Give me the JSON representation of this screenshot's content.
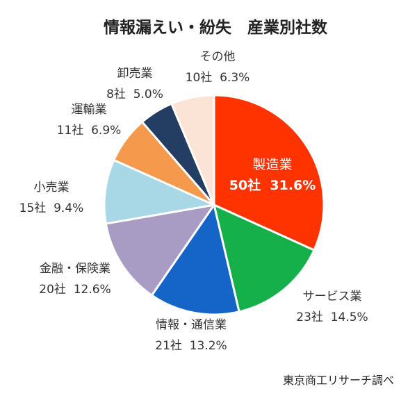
{
  "chart_data": {
    "type": "pie",
    "title": "情報漏えい・紛失　産業別社数",
    "source": "東京商工リサーチ調べ",
    "slices": [
      {
        "label": "製造業",
        "count": 50,
        "count_text": "50社",
        "percent": 31.6,
        "percent_text": "31.6%",
        "color": "#ff3300"
      },
      {
        "label": "サービス業",
        "count": 23,
        "count_text": "23社",
        "percent": 14.5,
        "percent_text": "14.5%",
        "color": "#16b04a"
      },
      {
        "label": "情報・通信業",
        "count": 21,
        "count_text": "21社",
        "percent": 13.2,
        "percent_text": "13.2%",
        "color": "#1565c8"
      },
      {
        "label": "金融・保険業",
        "count": 20,
        "count_text": "20社",
        "percent": 12.6,
        "percent_text": "12.6%",
        "color": "#a89cc4"
      },
      {
        "label": "小売業",
        "count": 15,
        "count_text": "15社",
        "percent": 9.4,
        "percent_text": "9.4%",
        "color": "#a8d8e6"
      },
      {
        "label": "運輸業",
        "count": 11,
        "count_text": "11社",
        "percent": 6.9,
        "percent_text": "6.9%",
        "color": "#f59a4c"
      },
      {
        "label": "卸売業",
        "count": 8,
        "count_text": "8社",
        "percent": 5.0,
        "percent_text": "5.0%",
        "color": "#233d63"
      },
      {
        "label": "その他",
        "count": 10,
        "count_text": "10社",
        "percent": 6.3,
        "percent_text": "6.3%",
        "color": "#fbe4d5"
      }
    ]
  }
}
